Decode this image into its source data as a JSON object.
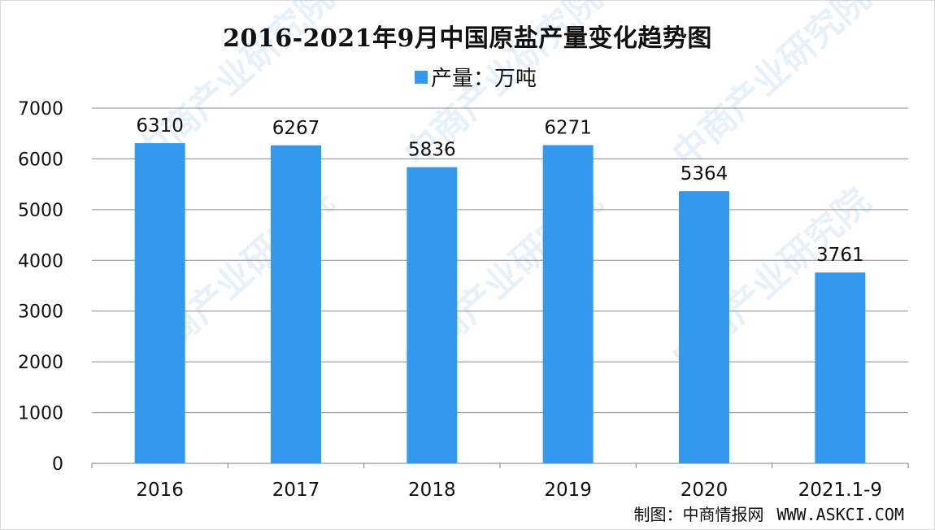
{
  "title": "2016-2021年9月中国原盐产量变化趋势图",
  "legend": {
    "label": "产量：万吨",
    "color": "#3399ee"
  },
  "source": {
    "label": "制图：中商情报网",
    "url": "WWW.ASKCI.COM"
  },
  "watermark": "中商产业研究院",
  "chart_data": {
    "type": "bar",
    "title": "2016-2021年9月中国原盐产量变化趋势图",
    "categories": [
      "2016",
      "2017",
      "2018",
      "2019",
      "2020",
      "2021.1-9"
    ],
    "series": [
      {
        "name": "产量：万吨",
        "values": [
          6310,
          6267,
          5836,
          6271,
          5364,
          3761
        ],
        "color": "#3399ee"
      }
    ],
    "data_labels": [
      "6310",
      "6267",
      "5836",
      "6271",
      "5364",
      "3761"
    ],
    "y_ticks": [
      "0",
      "1000",
      "2000",
      "3000",
      "4000",
      "5000",
      "6000",
      "7000"
    ],
    "ylim": [
      0,
      7000
    ],
    "grid": true,
    "legend_position": "top-center"
  }
}
